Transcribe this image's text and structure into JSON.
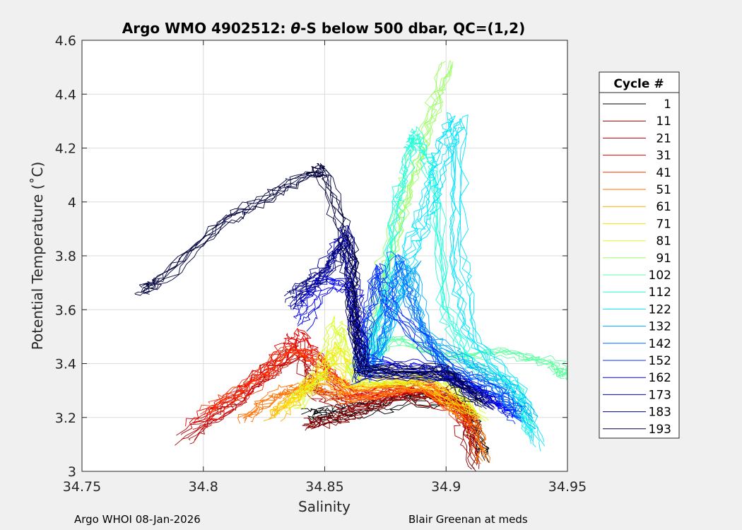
{
  "chart_data": {
    "type": "line",
    "title_prefix": "Argo WMO 4902512: ",
    "title_symbol": "θ",
    "title_suffix": "-S below 500 dbar,  QC=(1,2)",
    "xlabel": "Salinity",
    "ylabel": "Potential Temperature (˚C)",
    "xlim": [
      34.75,
      34.95
    ],
    "ylim": [
      3.0,
      4.6
    ],
    "xticks": [
      34.75,
      34.8,
      34.85,
      34.9,
      34.95
    ],
    "xtick_labels": [
      "34.75",
      "34.8",
      "34.85",
      "34.9",
      "34.95"
    ],
    "yticks": [
      3.0,
      3.2,
      3.4,
      3.6,
      3.8,
      4.0,
      4.2,
      4.4,
      4.6
    ],
    "ytick_labels": [
      "3",
      "3.2",
      "3.4",
      "3.6",
      "3.8",
      "4",
      "4.2",
      "4.4",
      "4.6"
    ],
    "grid": true,
    "legend_title": "Cycle #",
    "legend_position": "right-outside",
    "series": [
      {
        "name": "1",
        "color": "#000000",
        "points": [
          [
            34.843,
            3.2
          ],
          [
            34.852,
            3.21
          ],
          [
            34.865,
            3.23
          ],
          [
            34.885,
            3.27
          ],
          [
            34.905,
            3.25
          ],
          [
            34.91,
            3.2
          ],
          [
            34.915,
            3.05
          ]
        ]
      },
      {
        "name": "11",
        "color": "#800000",
        "points": [
          [
            34.842,
            3.18
          ],
          [
            34.85,
            3.19
          ],
          [
            34.862,
            3.22
          ],
          [
            34.88,
            3.28
          ],
          [
            34.9,
            3.3
          ],
          [
            34.908,
            3.22
          ],
          [
            34.912,
            3.02
          ]
        ]
      },
      {
        "name": "21",
        "color": "#b30000",
        "points": [
          [
            34.792,
            3.12
          ],
          [
            34.81,
            3.24
          ],
          [
            34.825,
            3.36
          ],
          [
            34.84,
            3.45
          ],
          [
            34.846,
            3.3
          ],
          [
            34.86,
            3.25
          ],
          [
            34.885,
            3.3
          ],
          [
            34.905,
            3.24
          ],
          [
            34.912,
            3.08
          ]
        ]
      },
      {
        "name": "31",
        "color": "#e60000",
        "points": [
          [
            34.795,
            3.16
          ],
          [
            34.815,
            3.28
          ],
          [
            34.83,
            3.4
          ],
          [
            34.838,
            3.5
          ],
          [
            34.848,
            3.38
          ],
          [
            34.86,
            3.27
          ],
          [
            34.89,
            3.31
          ],
          [
            34.91,
            3.2
          ]
        ]
      },
      {
        "name": "41",
        "color": "#ff3300",
        "points": [
          [
            34.8,
            3.22
          ],
          [
            34.82,
            3.33
          ],
          [
            34.835,
            3.45
          ],
          [
            34.845,
            3.42
          ],
          [
            34.86,
            3.28
          ],
          [
            34.89,
            3.32
          ],
          [
            34.912,
            3.15
          ]
        ]
      },
      {
        "name": "51",
        "color": "#ff7000",
        "points": [
          [
            34.816,
            3.2
          ],
          [
            34.83,
            3.3
          ],
          [
            34.842,
            3.33
          ],
          [
            34.86,
            3.28
          ],
          [
            34.89,
            3.33
          ],
          [
            34.91,
            3.22
          ],
          [
            34.915,
            3.05
          ]
        ]
      },
      {
        "name": "61",
        "color": "#ffad00",
        "points": [
          [
            34.828,
            3.2
          ],
          [
            34.838,
            3.28
          ],
          [
            34.848,
            3.35
          ],
          [
            34.86,
            3.3
          ],
          [
            34.89,
            3.33
          ],
          [
            34.91,
            3.2
          ]
        ]
      },
      {
        "name": "71",
        "color": "#ffe000",
        "points": [
          [
            34.832,
            3.22
          ],
          [
            34.845,
            3.32
          ],
          [
            34.855,
            3.45
          ],
          [
            34.862,
            3.32
          ],
          [
            34.89,
            3.34
          ],
          [
            34.91,
            3.22
          ]
        ]
      },
      {
        "name": "81",
        "color": "#d7ff28",
        "points": [
          [
            34.838,
            3.25
          ],
          [
            34.85,
            3.38
          ],
          [
            34.856,
            3.55
          ],
          [
            34.862,
            3.34
          ],
          [
            34.9,
            3.35
          ],
          [
            34.915,
            3.2
          ]
        ]
      },
      {
        "name": "91",
        "color": "#9bff64",
        "points": [
          [
            34.862,
            3.36
          ],
          [
            34.87,
            3.6
          ],
          [
            34.878,
            3.9
          ],
          [
            34.885,
            4.1
          ],
          [
            34.892,
            4.3
          ],
          [
            34.9,
            4.52
          ]
        ]
      },
      {
        "name": "102",
        "color": "#5fffa0",
        "points": [
          [
            34.865,
            3.4
          ],
          [
            34.88,
            3.5
          ],
          [
            34.9,
            3.42
          ],
          [
            34.925,
            3.45
          ],
          [
            34.945,
            3.4
          ],
          [
            34.95,
            3.35
          ]
        ]
      },
      {
        "name": "112",
        "color": "#23ffdc",
        "points": [
          [
            34.868,
            3.4
          ],
          [
            34.875,
            3.7
          ],
          [
            34.88,
            4.0
          ],
          [
            34.885,
            4.2
          ],
          [
            34.888,
            4.25
          ],
          [
            34.895,
            4.1
          ],
          [
            34.9,
            3.6
          ],
          [
            34.91,
            3.4
          ],
          [
            34.93,
            3.3
          ],
          [
            34.935,
            3.15
          ]
        ]
      },
      {
        "name": "122",
        "color": "#00e6ff",
        "points": [
          [
            34.87,
            3.4
          ],
          [
            34.88,
            3.7
          ],
          [
            34.89,
            3.9
          ],
          [
            34.895,
            4.05
          ],
          [
            34.9,
            4.2
          ],
          [
            34.905,
            4.31
          ],
          [
            34.905,
            3.8
          ],
          [
            34.91,
            3.5
          ],
          [
            34.93,
            3.3
          ],
          [
            34.938,
            3.1
          ]
        ]
      },
      {
        "name": "132",
        "color": "#00a8ff",
        "points": [
          [
            34.87,
            3.38
          ],
          [
            34.878,
            3.6
          ],
          [
            34.885,
            3.75
          ],
          [
            34.89,
            3.5
          ],
          [
            34.91,
            3.38
          ],
          [
            34.925,
            3.3
          ],
          [
            34.935,
            3.18
          ]
        ]
      },
      {
        "name": "142",
        "color": "#006cff",
        "points": [
          [
            34.868,
            3.36
          ],
          [
            34.875,
            3.6
          ],
          [
            34.88,
            3.8
          ],
          [
            34.886,
            3.6
          ],
          [
            34.9,
            3.38
          ],
          [
            34.92,
            3.3
          ],
          [
            34.93,
            3.2
          ]
        ]
      },
      {
        "name": "152",
        "color": "#0030ff",
        "points": [
          [
            34.862,
            3.34
          ],
          [
            34.866,
            3.55
          ],
          [
            34.87,
            3.75
          ],
          [
            34.875,
            3.6
          ],
          [
            34.9,
            3.37
          ],
          [
            34.92,
            3.28
          ],
          [
            34.928,
            3.2
          ]
        ]
      },
      {
        "name": "162",
        "color": "#0000f0",
        "points": [
          [
            34.84,
            3.55
          ],
          [
            34.85,
            3.7
          ],
          [
            34.862,
            3.68
          ],
          [
            34.865,
            3.4
          ],
          [
            34.89,
            3.38
          ],
          [
            34.915,
            3.3
          ],
          [
            34.925,
            3.22
          ]
        ]
      },
      {
        "name": "173",
        "color": "#0000b4",
        "points": [
          [
            34.838,
            3.62
          ],
          [
            34.85,
            3.75
          ],
          [
            34.86,
            3.9
          ],
          [
            34.864,
            3.6
          ],
          [
            34.866,
            3.38
          ],
          [
            34.9,
            3.37
          ],
          [
            34.92,
            3.25
          ]
        ]
      },
      {
        "name": "183",
        "color": "#000077",
        "points": [
          [
            34.835,
            3.65
          ],
          [
            34.848,
            3.72
          ],
          [
            34.858,
            3.85
          ],
          [
            34.862,
            3.55
          ],
          [
            34.866,
            3.36
          ],
          [
            34.9,
            3.36
          ],
          [
            34.918,
            3.25
          ]
        ]
      },
      {
        "name": "193",
        "color": "#00003c",
        "points": [
          [
            34.775,
            3.67
          ],
          [
            34.782,
            3.7
          ],
          [
            34.81,
            3.93
          ],
          [
            34.828,
            4.02
          ],
          [
            34.845,
            4.11
          ],
          [
            34.85,
            4.11
          ],
          [
            34.862,
            3.8
          ],
          [
            34.862,
            3.6
          ],
          [
            34.866,
            3.38
          ],
          [
            34.9,
            3.37
          ],
          [
            34.915,
            3.25
          ]
        ]
      }
    ]
  },
  "footer": {
    "left": "Argo WHOI 08-Jan-2026",
    "right": "Blair Greenan at meds"
  }
}
